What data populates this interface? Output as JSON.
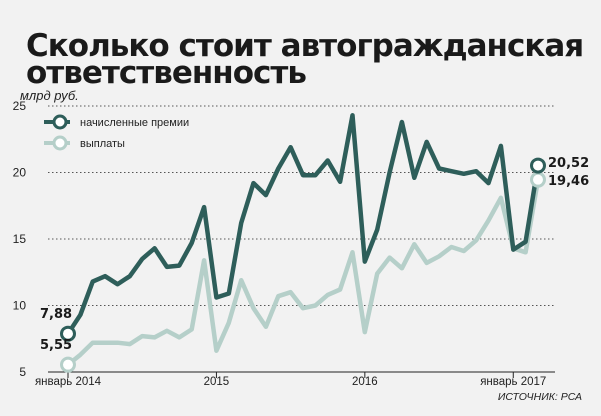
{
  "chart_data": {
    "type": "line",
    "title": "Сколько стоит автогражданская ответственность",
    "title_lines": [
      "Сколько стоит автогражданская",
      "ответственность"
    ],
    "ylabel": "млрд руб.",
    "ylim": [
      5,
      25
    ],
    "yticks": [
      5,
      10,
      15,
      20,
      25
    ],
    "grid": true,
    "legend_placement": "top-left",
    "x_tick_labels": [
      {
        "index": 0,
        "label": "январь 2014"
      },
      {
        "index": 12,
        "label": "2015"
      },
      {
        "index": 24,
        "label": "2016"
      },
      {
        "index": 36,
        "label": "январь 2017"
      }
    ],
    "series": [
      {
        "name": "начисленные премии",
        "color": "#2e5e5a",
        "values": [
          7.88,
          9.3,
          11.8,
          12.2,
          11.6,
          12.2,
          13.5,
          14.3,
          12.9,
          13.0,
          14.7,
          17.4,
          10.6,
          10.9,
          16.2,
          19.2,
          18.3,
          20.3,
          21.9,
          19.8,
          19.8,
          20.9,
          19.3,
          24.3,
          13.3,
          15.7,
          20.0,
          23.8,
          19.6,
          22.3,
          20.3,
          20.1,
          19.9,
          20.1,
          19.2,
          22.0,
          14.2,
          14.8,
          20.52
        ],
        "start_label": "7,88",
        "end_label": "20,52"
      },
      {
        "name": "выплаты",
        "color": "#b5cfc9",
        "values": [
          5.55,
          6.3,
          7.2,
          7.2,
          7.2,
          7.1,
          7.7,
          7.6,
          8.1,
          7.6,
          8.2,
          13.4,
          6.6,
          8.7,
          11.9,
          9.8,
          8.4,
          10.7,
          11.0,
          9.8,
          10.0,
          10.8,
          11.2,
          14.0,
          8.0,
          12.4,
          13.6,
          12.8,
          14.6,
          13.2,
          13.7,
          14.4,
          14.1,
          14.9,
          16.4,
          18.1,
          14.3,
          14.0,
          19.46
        ],
        "start_label": "5,55",
        "end_label": "19,46"
      }
    ]
  },
  "source_label": "ИСТОЧНИК: РСА"
}
